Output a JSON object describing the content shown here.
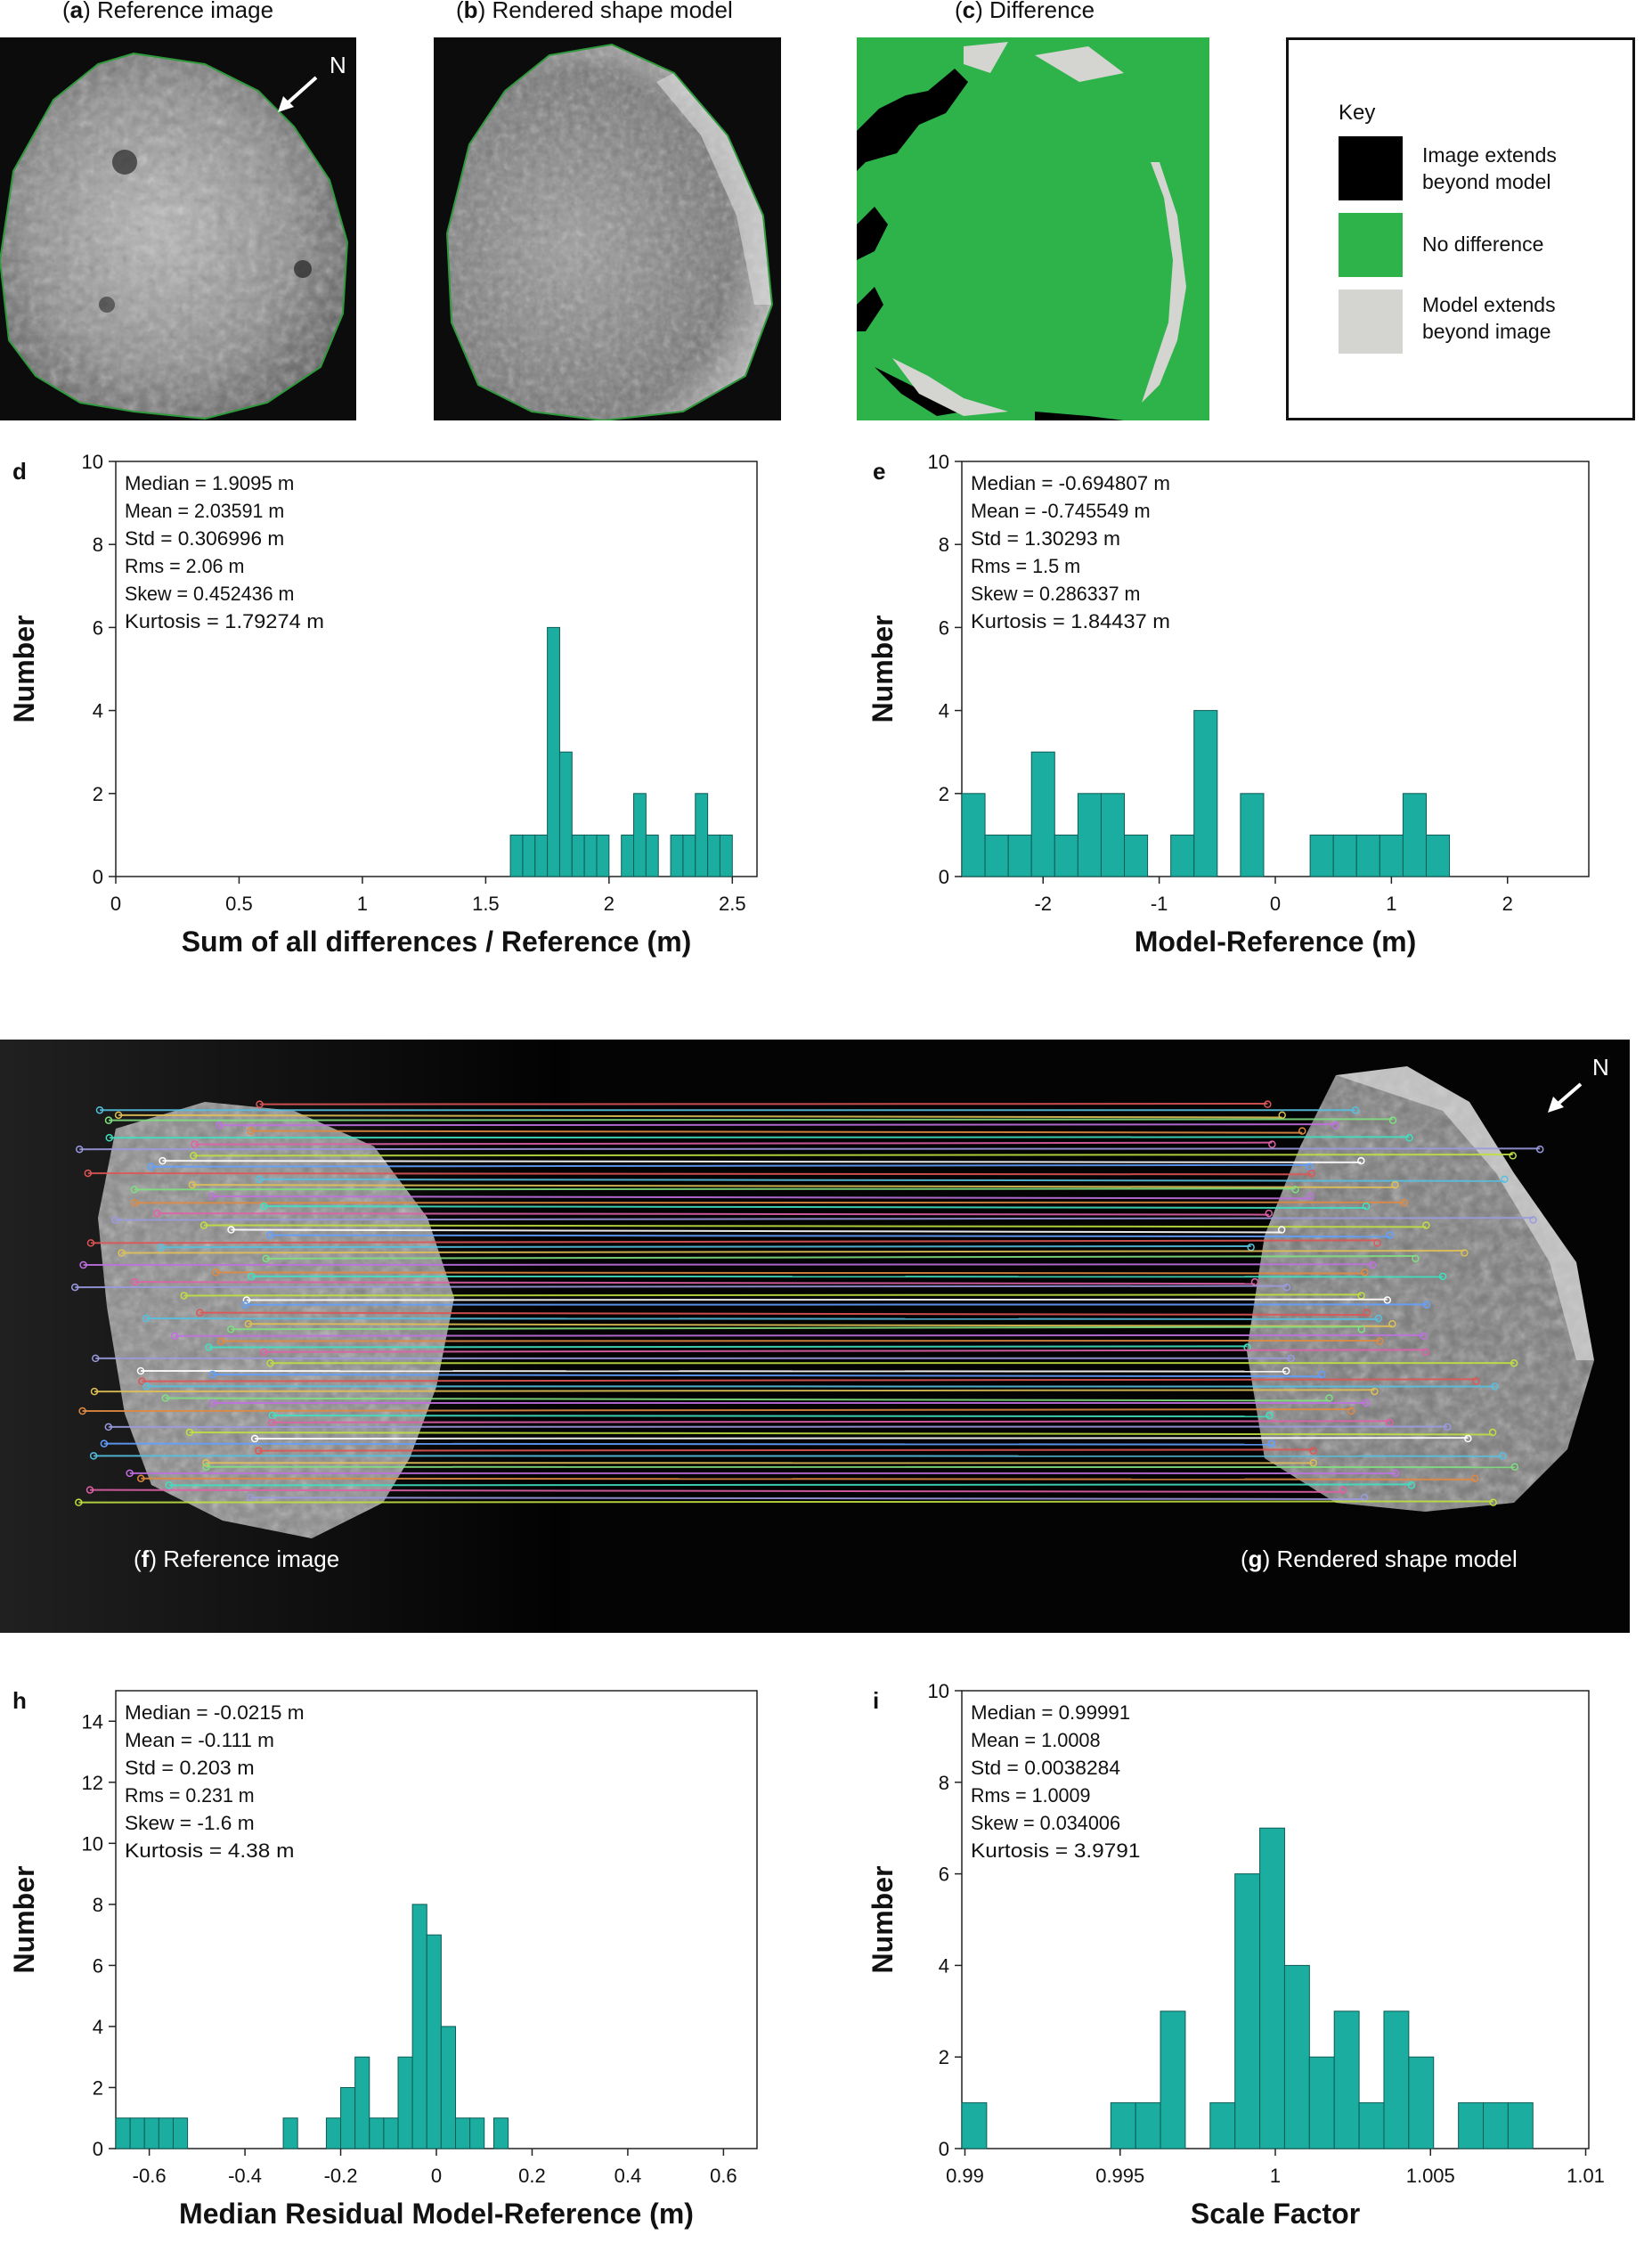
{
  "top_panels": {
    "a": {
      "letter": "a",
      "title": "Reference image",
      "north": "N"
    },
    "b": {
      "letter": "b",
      "title": "Rendered shape model"
    },
    "c": {
      "letter": "c",
      "title": "Difference"
    },
    "key": {
      "heading": "Key",
      "items": [
        {
          "label_line1": "Image extends",
          "label_line2": "beyond model",
          "color": "#000000"
        },
        {
          "label_line1": "No difference",
          "label_line2": "",
          "color": "#2db34a"
        },
        {
          "label_line1": "Model extends",
          "label_line2": "beyond image",
          "color": "#d4d4d0"
        }
      ]
    }
  },
  "colors": {
    "bar": "#1aada0",
    "green": "#2db34a",
    "grey": "#d4d4d0"
  },
  "match_panel": {
    "left_label_letter": "f",
    "left_label": "Reference image",
    "right_label_letter": "g",
    "right_label": "Rendered shape model",
    "north": "N"
  },
  "chart_data": [
    {
      "id": "d",
      "type": "bar",
      "letter": "d",
      "xlabel": "Sum of all differences / Reference (m)",
      "ylabel": "Number",
      "xlim": [
        0,
        2.6
      ],
      "ylim": [
        0,
        10
      ],
      "xticks": [
        0,
        0.5,
        1,
        1.5,
        2,
        2.5
      ],
      "yticks": [
        0,
        2,
        4,
        6,
        8,
        10
      ],
      "bin_width": 0.05,
      "bins": [
        {
          "x": 1.6,
          "v": 1
        },
        {
          "x": 1.65,
          "v": 1
        },
        {
          "x": 1.7,
          "v": 1
        },
        {
          "x": 1.75,
          "v": 6
        },
        {
          "x": 1.8,
          "v": 3
        },
        {
          "x": 1.85,
          "v": 1
        },
        {
          "x": 1.9,
          "v": 1
        },
        {
          "x": 1.95,
          "v": 1
        },
        {
          "x": 2.05,
          "v": 1
        },
        {
          "x": 2.1,
          "v": 2
        },
        {
          "x": 2.15,
          "v": 1
        },
        {
          "x": 2.25,
          "v": 1
        },
        {
          "x": 2.3,
          "v": 1
        },
        {
          "x": 2.35,
          "v": 2
        },
        {
          "x": 2.4,
          "v": 1
        },
        {
          "x": 2.45,
          "v": 1
        }
      ],
      "stats": [
        "Median = 1.9095 m",
        "Mean = 2.03591 m",
        "Std = 0.306996 m",
        "Rms = 2.06 m",
        "Skew = 0.452436 m",
        "Kurtosis = 1.79274 m"
      ]
    },
    {
      "id": "e",
      "type": "bar",
      "letter": "e",
      "xlabel": "Model-Reference (m)",
      "ylabel": "Number",
      "xlim": [
        -2.7,
        2.7
      ],
      "ylim": [
        0,
        10
      ],
      "xticks": [
        -2,
        -1,
        0,
        1,
        2
      ],
      "yticks": [
        0,
        2,
        4,
        6,
        8,
        10
      ],
      "bin_width": 0.2,
      "bins": [
        {
          "x": -2.7,
          "v": 2
        },
        {
          "x": -2.5,
          "v": 1
        },
        {
          "x": -2.3,
          "v": 1
        },
        {
          "x": -2.1,
          "v": 3
        },
        {
          "x": -1.9,
          "v": 1
        },
        {
          "x": -1.7,
          "v": 2
        },
        {
          "x": -1.5,
          "v": 2
        },
        {
          "x": -1.3,
          "v": 1
        },
        {
          "x": -0.9,
          "v": 1
        },
        {
          "x": -0.7,
          "v": 4
        },
        {
          "x": -0.3,
          "v": 2
        },
        {
          "x": 0.3,
          "v": 1
        },
        {
          "x": 0.5,
          "v": 1
        },
        {
          "x": 0.7,
          "v": 1
        },
        {
          "x": 0.9,
          "v": 1
        },
        {
          "x": 1.1,
          "v": 2
        },
        {
          "x": 1.3,
          "v": 1
        }
      ],
      "stats": [
        "Median = -0.694807 m",
        "Mean = -0.745549 m",
        "Std = 1.30293 m",
        "Rms = 1.5 m",
        "Skew = 0.286337 m",
        "Kurtosis = 1.84437 m"
      ]
    },
    {
      "id": "h",
      "type": "bar",
      "letter": "h",
      "xlabel": "Median Residual Model-Reference (m)",
      "ylabel": "Number",
      "xlim": [
        -0.67,
        0.67
      ],
      "ylim": [
        0,
        15
      ],
      "xticks": [
        -0.6,
        -0.4,
        -0.2,
        0,
        0.2,
        0.4,
        0.6
      ],
      "yticks": [
        0,
        2,
        4,
        6,
        8,
        10,
        12,
        14
      ],
      "bin_width": 0.03,
      "bins": [
        {
          "x": -0.67,
          "v": 1
        },
        {
          "x": -0.64,
          "v": 1
        },
        {
          "x": -0.61,
          "v": 1
        },
        {
          "x": -0.58,
          "v": 1
        },
        {
          "x": -0.55,
          "v": 1
        },
        {
          "x": -0.32,
          "v": 1
        },
        {
          "x": -0.23,
          "v": 1
        },
        {
          "x": -0.2,
          "v": 2
        },
        {
          "x": -0.17,
          "v": 3
        },
        {
          "x": -0.14,
          "v": 1
        },
        {
          "x": -0.11,
          "v": 1
        },
        {
          "x": -0.08,
          "v": 3
        },
        {
          "x": -0.05,
          "v": 8
        },
        {
          "x": -0.02,
          "v": 7
        },
        {
          "x": 0.01,
          "v": 4
        },
        {
          "x": 0.04,
          "v": 1
        },
        {
          "x": 0.07,
          "v": 1
        },
        {
          "x": 0.12,
          "v": 1
        }
      ],
      "stats": [
        "Median = -0.0215 m",
        "Mean = -0.111 m",
        "Std = 0.203 m",
        "Rms = 0.231 m",
        "Skew = -1.6 m",
        "Kurtosis = 4.38 m"
      ]
    },
    {
      "id": "i",
      "type": "bar",
      "letter": "i",
      "xlabel": "Scale Factor",
      "ylabel": "Number",
      "xlim": [
        0.9899,
        1.0101
      ],
      "ylim": [
        0,
        10
      ],
      "xticks": [
        0.99,
        0.995,
        1,
        1.005,
        1.01
      ],
      "xtick_labels": [
        "0.99",
        "0.995",
        "1",
        "1.005",
        "1.01"
      ],
      "yticks": [
        0,
        2,
        4,
        6,
        8,
        10
      ],
      "bin_width": 0.0008,
      "bins": [
        {
          "x": 0.9899,
          "v": 1
        },
        {
          "x": 0.9947,
          "v": 1
        },
        {
          "x": 0.9955,
          "v": 1
        },
        {
          "x": 0.9963,
          "v": 3
        },
        {
          "x": 0.9979,
          "v": 1
        },
        {
          "x": 0.9987,
          "v": 6
        },
        {
          "x": 0.9995,
          "v": 7
        },
        {
          "x": 1.0003,
          "v": 4
        },
        {
          "x": 1.0011,
          "v": 2
        },
        {
          "x": 1.0019,
          "v": 3
        },
        {
          "x": 1.0027,
          "v": 1
        },
        {
          "x": 1.0035,
          "v": 3
        },
        {
          "x": 1.0043,
          "v": 2
        },
        {
          "x": 1.0059,
          "v": 1
        },
        {
          "x": 1.0067,
          "v": 1
        },
        {
          "x": 1.0075,
          "v": 1
        }
      ],
      "stats": [
        "Median = 0.99991",
        "Mean = 1.0008",
        "Std = 0.0038284",
        "Rms = 1.0009",
        "Skew = 0.034006",
        "Kurtosis = 3.9791"
      ]
    }
  ]
}
